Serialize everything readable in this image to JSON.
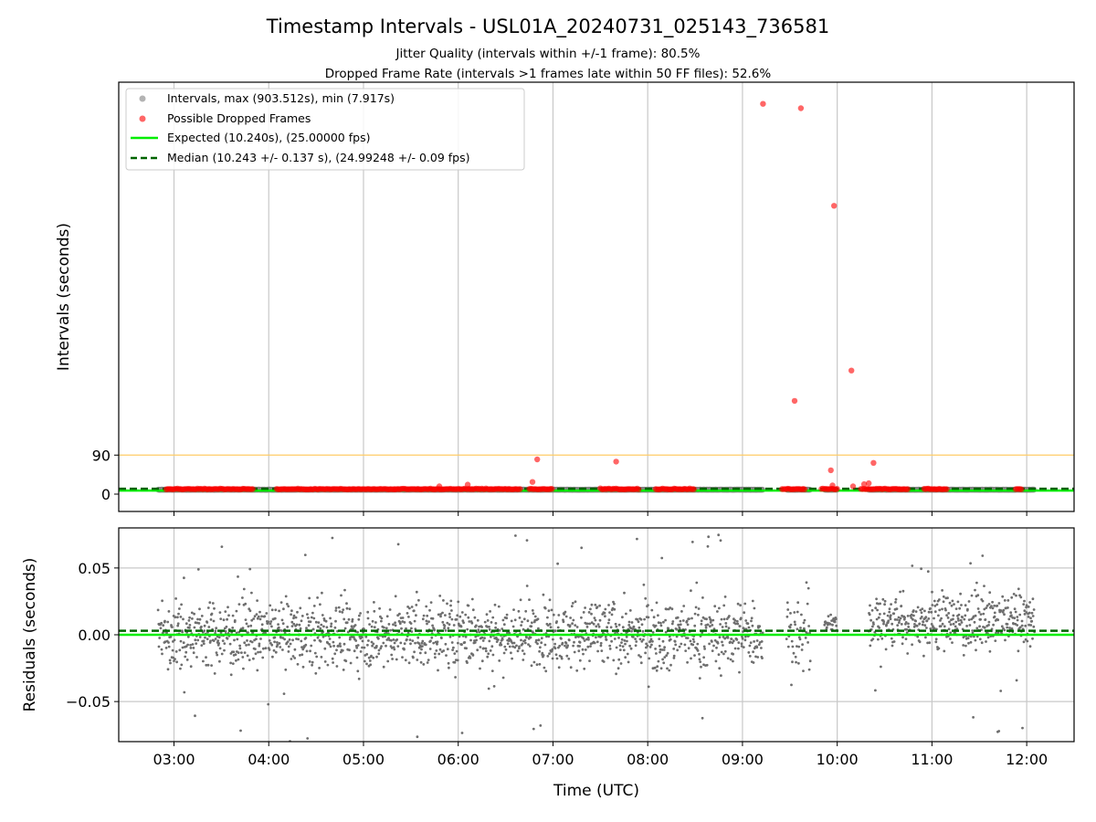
{
  "chart_data": [
    {
      "type": "scatter",
      "title": "Timestamp Intervals - USL01A_20240731_025143_736581",
      "subtitle_lines": [
        "Jitter Quality (intervals within +/-1 frame): 80.5%",
        "Dropped Frame Rate (intervals >1 frames late within 50 FF files): 52.6%"
      ],
      "ylabel": "Intervals (seconds)",
      "xlabel": "",
      "xlim": [
        "02:25",
        "12:30"
      ],
      "ylim": [
        -40,
        950
      ],
      "yticks": [
        0,
        90
      ],
      "ytick_labels": [
        "0",
        "90"
      ],
      "reference_line_y": 90,
      "grid": "x",
      "legend_placement": "top-left",
      "legend": [
        {
          "label": "Intervals, max (903.512s), min (7.917s)",
          "marker": "gray-dot"
        },
        {
          "label": "Possible Dropped Frames",
          "marker": "red-dot"
        },
        {
          "label": "Expected (10.240s), (25.00000 fps)",
          "marker": "green-solid-line"
        },
        {
          "label": "Median (10.243 +/- 0.137 s), (24.99248 +/- 0.09 fps)",
          "marker": "darkgreen-dashed-line"
        }
      ],
      "expected_y": 10.24,
      "median_y": 10.243,
      "interval_segments": [
        [
          "02:50",
          "04:50"
        ],
        [
          "04:50",
          "09:13"
        ],
        [
          "09:28",
          "09:43"
        ],
        [
          "09:52",
          "10:00"
        ],
        [
          "10:20",
          "12:05"
        ]
      ],
      "interval_value": 10.24,
      "dropped_bands": [
        [
          "02:55",
          "03:50"
        ],
        [
          "04:05",
          "05:20"
        ],
        [
          "05:20",
          "06:40"
        ],
        [
          "06:45",
          "07:00"
        ],
        [
          "07:30",
          "07:55"
        ],
        [
          "08:05",
          "08:30"
        ],
        [
          "09:25",
          "09:40"
        ],
        [
          "09:50",
          "10:00"
        ],
        [
          "10:15",
          "10:45"
        ],
        [
          "10:55",
          "11:10"
        ],
        [
          "11:53",
          "11:57"
        ]
      ],
      "dropped_outliers": [
        {
          "x": "09:13",
          "y": 900
        },
        {
          "x": "09:37",
          "y": 890
        },
        {
          "x": "09:58",
          "y": 665
        },
        {
          "x": "09:33",
          "y": 215
        },
        {
          "x": "10:09",
          "y": 285
        },
        {
          "x": "06:50",
          "y": 80
        },
        {
          "x": "07:40",
          "y": 75
        },
        {
          "x": "09:56",
          "y": 55
        },
        {
          "x": "10:23",
          "y": 72
        },
        {
          "x": "06:47",
          "y": 28
        },
        {
          "x": "06:06",
          "y": 22
        },
        {
          "x": "05:48",
          "y": 18
        },
        {
          "x": "10:10",
          "y": 18
        },
        {
          "x": "10:17",
          "y": 23
        },
        {
          "x": "10:20",
          "y": 25
        },
        {
          "x": "09:57",
          "y": 20
        }
      ],
      "series": [
        {
          "name": "Intervals, max (903.512s), min (7.917s)"
        },
        {
          "name": "Possible Dropped Frames"
        },
        {
          "name": "Expected (10.240s), (25.00000 fps)"
        },
        {
          "name": "Median (10.243 +/- 0.137 s), (24.99248 +/- 0.09 fps)"
        }
      ]
    },
    {
      "type": "scatter",
      "title": "",
      "xlabel": "Time (UTC)",
      "ylabel": "Residuals (seconds)",
      "xlim": [
        "02:25",
        "12:30"
      ],
      "ylim": [
        -0.08,
        0.08
      ],
      "xticks": [
        "03:00",
        "04:00",
        "05:00",
        "06:00",
        "07:00",
        "08:00",
        "09:00",
        "10:00",
        "11:00",
        "12:00"
      ],
      "yticks": [
        -0.05,
        0.0,
        0.05
      ],
      "ytick_labels": [
        "−0.05",
        "0.00",
        "0.05"
      ],
      "grid": "both",
      "expected_residual": 0.0,
      "median_residual": 0.003,
      "residual_segments": [
        {
          "start": "02:50",
          "end": "04:50",
          "center": 0.0,
          "spread": 0.026
        },
        {
          "start": "04:50",
          "end": "09:13",
          "center": 0.0,
          "spread": 0.026
        },
        {
          "start": "09:28",
          "end": "09:43",
          "center": 0.0,
          "spread": 0.03
        },
        {
          "start": "09:52",
          "end": "10:00",
          "center": 0.008,
          "spread": 0.006
        },
        {
          "start": "10:20",
          "end": "12:05",
          "center": 0.01,
          "spread": 0.022
        }
      ],
      "note_points": "residual scatter points are sampled; approx. 2000 per segment density"
    }
  ],
  "colors": {
    "interval_gray": "#808080",
    "dropped_red": "#ff0000",
    "expected_green": "#00ee00",
    "median_green": "#006400",
    "reference_orange": "#ffcc66",
    "grid": "#c8c8c8",
    "residual_gray": "#6e6e6e"
  }
}
